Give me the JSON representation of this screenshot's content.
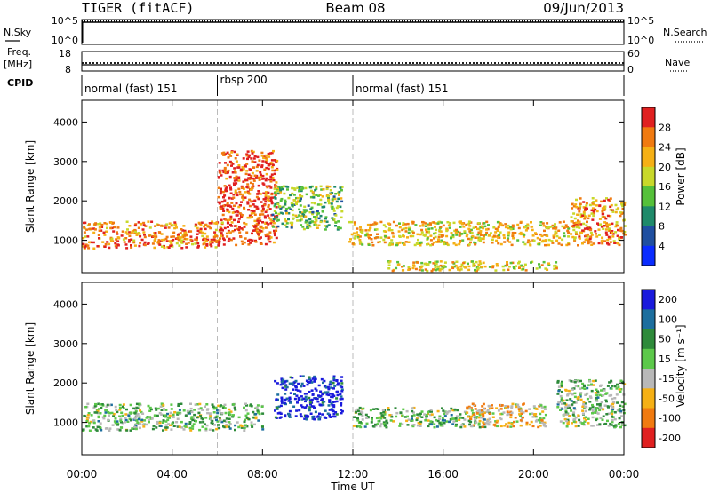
{
  "header": {
    "title": "TIGER (fitACF)",
    "beam": "Beam 08",
    "date": "09/Jun/2013"
  },
  "strips": {
    "nsky_label": "N.Sky",
    "nsky_ticks": [
      "10^5",
      "10^0"
    ],
    "nsearch_label": "N.Search",
    "nsearch_ticks": [
      "10^5",
      "10^0"
    ],
    "freq_label": "Freq.",
    "freq_unit": "[MHz]",
    "freq_ticks": [
      "18",
      "8"
    ],
    "nave_label": "Nave",
    "nave_ticks": [
      "60",
      "0"
    ],
    "cpid_label": "CPID",
    "cpid_segments": [
      {
        "label": "normal (fast) 151",
        "start_hour": 0,
        "end_hour": 6
      },
      {
        "label": "rbsp 200",
        "start_hour": 6,
        "end_hour": 12
      },
      {
        "label": "normal (fast) 151",
        "start_hour": 12,
        "end_hour": 24
      }
    ]
  },
  "chart_data": [
    {
      "type": "heatmap",
      "quantity": "power",
      "ylabel": "Slant Range [km]",
      "xlabel": "",
      "x_range_hours": [
        0,
        24
      ],
      "ylim": [
        180,
        4550
      ],
      "yticks": [
        "1000",
        "2000",
        "3000",
        "4000"
      ],
      "colorbar_label": "Power [dB]",
      "colorbar_ticks": [
        "4",
        "8",
        "12",
        "16",
        "20",
        "24",
        "28"
      ],
      "colorbar_colors": [
        "#0a2cff",
        "#1f4fa0",
        "#1f8a6a",
        "#55c03a",
        "#c8d82a",
        "#f5b015",
        "#f07a10",
        "#e02020"
      ],
      "echo_bands": [
        {
          "t0": 0.0,
          "t1": 6.2,
          "r0": 820,
          "r1": 1500,
          "level": 0.8
        },
        {
          "t0": 6.0,
          "t1": 8.6,
          "r0": 900,
          "r1": 3300,
          "level": 0.9
        },
        {
          "t0": 8.4,
          "t1": 11.5,
          "r0": 1300,
          "r1": 2400,
          "level": 0.45
        },
        {
          "t0": 11.8,
          "t1": 21.5,
          "r0": 900,
          "r1": 1500,
          "level": 0.65
        },
        {
          "t0": 13.5,
          "t1": 21.0,
          "r0": 250,
          "r1": 500,
          "level": 0.6
        },
        {
          "t0": 21.6,
          "t1": 24.0,
          "r0": 900,
          "r1": 2100,
          "level": 0.75
        }
      ]
    },
    {
      "type": "heatmap",
      "quantity": "velocity",
      "ylabel": "Slant Range [km]",
      "xlabel": "Time UT",
      "x_range_hours": [
        0,
        24
      ],
      "ylim": [
        180,
        4550
      ],
      "yticks": [
        "1000",
        "2000",
        "3000",
        "4000"
      ],
      "xticks": [
        "00:00",
        "04:00",
        "08:00",
        "12:00",
        "16:00",
        "20:00",
        "00:00"
      ],
      "colorbar_label": "Velocity [m s⁻¹]",
      "colorbar_ticks": [
        "200",
        "100",
        "50",
        "15",
        "-15",
        "-50",
        "-100",
        "-200"
      ],
      "colorbar_colors": [
        "#1a1adc",
        "#1c6e9e",
        "#2e8a3a",
        "#5cc84a",
        "#b8b8b8",
        "#f5b015",
        "#f07a10",
        "#e02020"
      ],
      "echo_bands": [
        {
          "t0": 0.0,
          "t1": 8.0,
          "r0": 820,
          "r1": 1500,
          "level": 0.45
        },
        {
          "t0": 8.5,
          "t1": 11.5,
          "r0": 1100,
          "r1": 2200,
          "level": 0.05
        },
        {
          "t0": 12.0,
          "t1": 18.0,
          "r0": 900,
          "r1": 1400,
          "level": 0.45
        },
        {
          "t0": 17.0,
          "t1": 20.5,
          "r0": 900,
          "r1": 1500,
          "level": 0.65
        },
        {
          "t0": 21.0,
          "t1": 24.0,
          "r0": 900,
          "r1": 2100,
          "level": 0.45
        }
      ]
    }
  ]
}
